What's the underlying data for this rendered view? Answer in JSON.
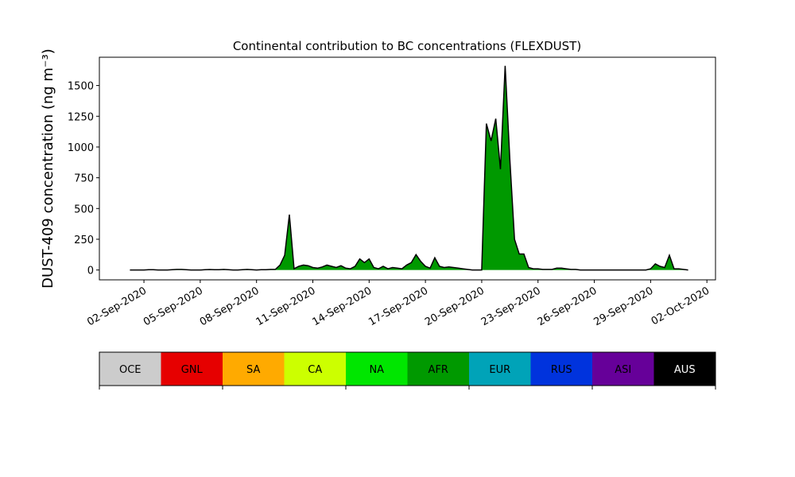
{
  "chart_data": {
    "type": "area",
    "title": "Continental contribution to BC concentrations (FLEXDUST)",
    "y_label": "DUST-409 concentration (ng m⁻³)",
    "ylim": [
      -80,
      1730
    ],
    "yticks": [
      0,
      250,
      500,
      750,
      1000,
      1250,
      1500
    ],
    "xlim": [
      "2020-08-30T15:00",
      "2020-10-02T11:00"
    ],
    "xticks": [
      {
        "value": "2020-09-02T00:00",
        "label": "02-Sep-2020"
      },
      {
        "value": "2020-09-05T00:00",
        "label": "05-Sep-2020"
      },
      {
        "value": "2020-09-08T00:00",
        "label": "08-Sep-2020"
      },
      {
        "value": "2020-09-11T00:00",
        "label": "11-Sep-2020"
      },
      {
        "value": "2020-09-14T00:00",
        "label": "14-Sep-2020"
      },
      {
        "value": "2020-09-17T00:00",
        "label": "17-Sep-2020"
      },
      {
        "value": "2020-09-20T00:00",
        "label": "20-Sep-2020"
      },
      {
        "value": "2020-09-23T00:00",
        "label": "23-Sep-2020"
      },
      {
        "value": "2020-09-26T00:00",
        "label": "26-Sep-2020"
      },
      {
        "value": "2020-09-29T00:00",
        "label": "29-Sep-2020"
      },
      {
        "value": "2020-10-02T00:00",
        "label": "02-Oct-2020"
      }
    ],
    "x": [
      "2020-09-01T06:00",
      "2020-09-01T12:00",
      "2020-09-01T18:00",
      "2020-09-02T00:00",
      "2020-09-02T06:00",
      "2020-09-02T12:00",
      "2020-09-02T18:00",
      "2020-09-03T00:00",
      "2020-09-03T06:00",
      "2020-09-03T12:00",
      "2020-09-03T18:00",
      "2020-09-04T00:00",
      "2020-09-04T06:00",
      "2020-09-04T12:00",
      "2020-09-04T18:00",
      "2020-09-05T00:00",
      "2020-09-05T06:00",
      "2020-09-05T12:00",
      "2020-09-05T18:00",
      "2020-09-06T00:00",
      "2020-09-06T06:00",
      "2020-09-06T12:00",
      "2020-09-06T18:00",
      "2020-09-07T00:00",
      "2020-09-07T06:00",
      "2020-09-07T12:00",
      "2020-09-07T18:00",
      "2020-09-08T00:00",
      "2020-09-08T06:00",
      "2020-09-08T12:00",
      "2020-09-08T18:00",
      "2020-09-09T00:00",
      "2020-09-09T06:00",
      "2020-09-09T12:00",
      "2020-09-09T18:00",
      "2020-09-10T00:00",
      "2020-09-10T06:00",
      "2020-09-10T12:00",
      "2020-09-10T18:00",
      "2020-09-11T00:00",
      "2020-09-11T06:00",
      "2020-09-11T12:00",
      "2020-09-11T18:00",
      "2020-09-12T00:00",
      "2020-09-12T06:00",
      "2020-09-12T12:00",
      "2020-09-12T18:00",
      "2020-09-13T00:00",
      "2020-09-13T06:00",
      "2020-09-13T12:00",
      "2020-09-13T18:00",
      "2020-09-14T00:00",
      "2020-09-14T06:00",
      "2020-09-14T12:00",
      "2020-09-14T18:00",
      "2020-09-15T00:00",
      "2020-09-15T06:00",
      "2020-09-15T12:00",
      "2020-09-15T18:00",
      "2020-09-16T00:00",
      "2020-09-16T06:00",
      "2020-09-16T12:00",
      "2020-09-16T18:00",
      "2020-09-17T00:00",
      "2020-09-17T06:00",
      "2020-09-17T12:00",
      "2020-09-17T18:00",
      "2020-09-18T00:00",
      "2020-09-18T06:00",
      "2020-09-18T12:00",
      "2020-09-18T18:00",
      "2020-09-19T00:00",
      "2020-09-19T06:00",
      "2020-09-19T12:00",
      "2020-09-19T18:00",
      "2020-09-20T00:00",
      "2020-09-20T06:00",
      "2020-09-20T12:00",
      "2020-09-20T18:00",
      "2020-09-21T00:00",
      "2020-09-21T06:00",
      "2020-09-21T12:00",
      "2020-09-21T18:00",
      "2020-09-22T00:00",
      "2020-09-22T06:00",
      "2020-09-22T12:00",
      "2020-09-22T18:00",
      "2020-09-23T00:00",
      "2020-09-23T06:00",
      "2020-09-23T12:00",
      "2020-09-23T18:00",
      "2020-09-24T00:00",
      "2020-09-24T06:00",
      "2020-09-24T12:00",
      "2020-09-24T18:00",
      "2020-09-25T00:00",
      "2020-09-25T06:00",
      "2020-09-25T12:00",
      "2020-09-25T18:00",
      "2020-09-26T00:00",
      "2020-09-26T06:00",
      "2020-09-26T12:00",
      "2020-09-26T18:00",
      "2020-09-27T00:00",
      "2020-09-27T06:00",
      "2020-09-27T12:00",
      "2020-09-27T18:00",
      "2020-09-28T00:00",
      "2020-09-28T06:00",
      "2020-09-28T12:00",
      "2020-09-28T18:00",
      "2020-09-29T00:00",
      "2020-09-29T06:00",
      "2020-09-29T12:00",
      "2020-09-29T18:00",
      "2020-09-30T00:00",
      "2020-09-30T06:00",
      "2020-09-30T12:00",
      "2020-09-30T18:00",
      "2020-10-01T00:00"
    ],
    "series": [
      {
        "name": "AFR",
        "color": "#009900",
        "values": [
          0,
          0,
          0,
          0,
          3,
          2,
          0,
          0,
          0,
          2,
          5,
          5,
          3,
          0,
          0,
          0,
          2,
          4,
          3,
          2,
          5,
          3,
          0,
          0,
          3,
          5,
          2,
          0,
          2,
          3,
          5,
          5,
          40,
          120,
          450,
          10,
          30,
          40,
          35,
          20,
          15,
          25,
          40,
          30,
          20,
          35,
          15,
          10,
          30,
          90,
          60,
          90,
          20,
          10,
          30,
          10,
          20,
          15,
          10,
          40,
          60,
          125,
          70,
          30,
          15,
          100,
          30,
          20,
          25,
          20,
          15,
          10,
          5,
          0,
          0,
          0,
          1190,
          1050,
          1230,
          820,
          1660,
          900,
          250,
          130,
          130,
          20,
          10,
          10,
          5,
          5,
          5,
          15,
          15,
          10,
          5,
          5,
          0,
          0,
          0,
          0,
          0,
          0,
          0,
          0,
          0,
          0,
          0,
          0,
          0,
          0,
          0,
          10,
          50,
          30,
          20,
          120,
          10,
          10,
          5,
          0
        ]
      }
    ],
    "legend": [
      {
        "name": "OCE",
        "color": "#cccccc"
      },
      {
        "name": "GNL",
        "color": "#e60000"
      },
      {
        "name": "SA",
        "color": "#ffaa00"
      },
      {
        "name": "CA",
        "color": "#ccff00"
      },
      {
        "name": "NA",
        "color": "#00e600"
      },
      {
        "name": "AFR",
        "color": "#009900"
      },
      {
        "name": "EUR",
        "color": "#00a3b8"
      },
      {
        "name": "RUS",
        "color": "#0033dd"
      },
      {
        "name": "ASI",
        "color": "#660099"
      },
      {
        "name": "AUS",
        "color": "#000000"
      }
    ]
  }
}
